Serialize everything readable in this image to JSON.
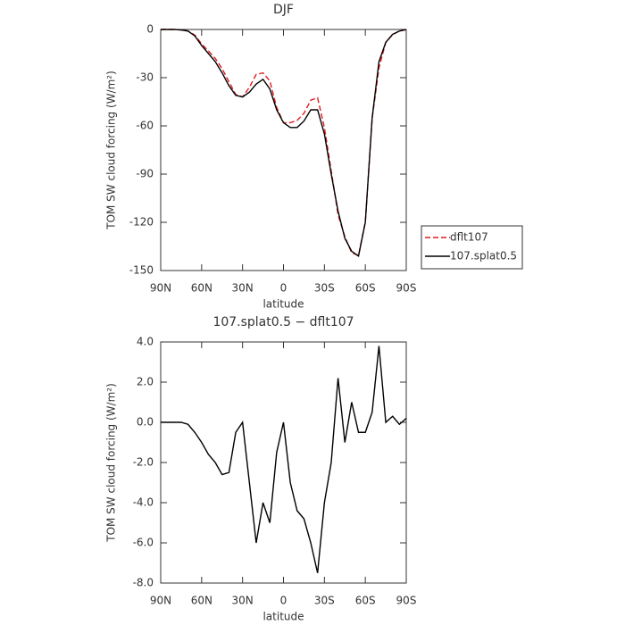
{
  "chart_data": [
    {
      "type": "line",
      "title": "DJF",
      "x_label": "latitude",
      "y_label": "TOM SW cloud forcing (W/m²)",
      "x": [
        90,
        85,
        80,
        75,
        70,
        65,
        60,
        55,
        50,
        45,
        40,
        35,
        30,
        25,
        20,
        15,
        10,
        5,
        0,
        -5,
        -10,
        -15,
        -20,
        -25,
        -30,
        -35,
        -40,
        -45,
        -50,
        -55,
        -60,
        -65,
        -70,
        -75,
        -80,
        -85,
        -90
      ],
      "series": [
        {
          "name": "dflt107",
          "color": "#e31a1c",
          "dash": true,
          "values": [
            0,
            0,
            0,
            -0.3,
            -0.9,
            -3.5,
            -9,
            -13.4,
            -18,
            -24.4,
            -32.5,
            -40.5,
            -42,
            -36,
            -28,
            -27,
            -32,
            -48.5,
            -58,
            -58,
            -56.6,
            -52.2,
            -44,
            -42.5,
            -61,
            -88,
            -115.2,
            -129,
            -139,
            -140.5,
            -119.5,
            -55.5,
            -23.8,
            -8,
            -3.3,
            -0.9,
            -0.2
          ]
        },
        {
          "name": "107.splat0.5",
          "color": "#000000",
          "dash": false,
          "values": [
            0,
            0,
            0,
            -0.3,
            -1,
            -4,
            -10,
            -15,
            -20,
            -27,
            -35,
            -41,
            -42,
            -39,
            -34,
            -31,
            -37,
            -50,
            -58,
            -61,
            -61,
            -57,
            -50,
            -50,
            -65,
            -90,
            -113,
            -130,
            -138,
            -141,
            -120,
            -55,
            -20,
            -8,
            -3,
            -1,
            0
          ]
        }
      ],
      "xlim": [
        90,
        -90
      ],
      "xticks": [
        {
          "value": 90,
          "label": "90N"
        },
        {
          "value": 60,
          "label": "60N"
        },
        {
          "value": 30,
          "label": "30N"
        },
        0,
        {
          "value": -30,
          "label": "30S"
        },
        {
          "value": -60,
          "label": "60S"
        },
        {
          "value": -90,
          "label": "90S"
        }
      ],
      "ylim": [
        -150,
        0
      ],
      "yticks": [
        0,
        -30,
        -60,
        -90,
        -120,
        -150
      ],
      "legend": "right"
    },
    {
      "type": "line",
      "title": "107.splat0.5 − dflt107",
      "x_label": "latitude",
      "y_label": "TOM SW cloud forcing (W/m²)",
      "x": [
        90,
        85,
        80,
        75,
        70,
        65,
        60,
        55,
        50,
        45,
        40,
        35,
        30,
        25,
        20,
        15,
        10,
        5,
        0,
        -5,
        -10,
        -15,
        -20,
        -25,
        -30,
        -35,
        -40,
        -45,
        -50,
        -55,
        -60,
        -65,
        -70,
        -75,
        -80,
        -85,
        -90
      ],
      "series": [
        {
          "color": "#000000",
          "values": [
            0,
            0,
            0,
            0,
            -0.1,
            -0.5,
            -1,
            -1.6,
            -2,
            -2.6,
            -2.5,
            -0.5,
            0,
            -3,
            -6,
            -4,
            -5,
            -1.5,
            0,
            -3,
            -4.4,
            -4.8,
            -6,
            -7.5,
            -4,
            -2,
            2.2,
            -1,
            1,
            -0.5,
            -0.5,
            0.5,
            3.8,
            0,
            0.3,
            -0.1,
            0.2
          ]
        }
      ],
      "xlim": [
        90,
        -90
      ],
      "xticks": [
        {
          "value": 90,
          "label": "90N"
        },
        {
          "value": 60,
          "label": "60N"
        },
        {
          "value": 30,
          "label": "30N"
        },
        0,
        {
          "value": -30,
          "label": "30S"
        },
        {
          "value": -60,
          "label": "60S"
        },
        {
          "value": -90,
          "label": "90S"
        }
      ],
      "ylim": [
        -8,
        4
      ],
      "yticks": [
        {
          "value": 4,
          "label": "4.0"
        },
        {
          "value": 2,
          "label": "2.0"
        },
        {
          "value": 0,
          "label": "0.0"
        },
        {
          "value": -2,
          "label": "-2.0"
        },
        {
          "value": -4,
          "label": "-4.0"
        },
        {
          "value": -6,
          "label": "-6.0"
        },
        {
          "value": -8,
          "label": "-8.0"
        }
      ]
    }
  ]
}
